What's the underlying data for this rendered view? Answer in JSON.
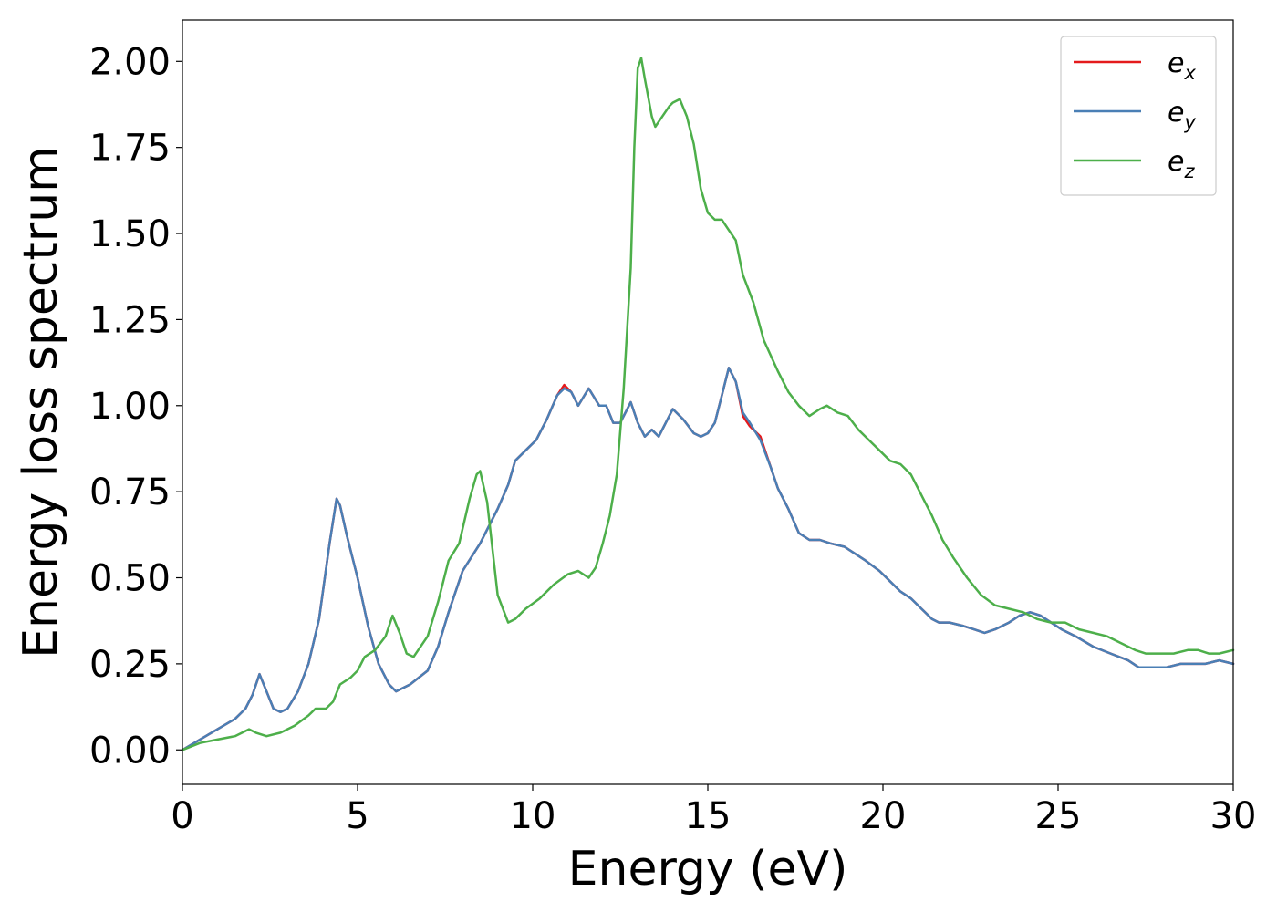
{
  "chart_data": {
    "type": "line",
    "title": "",
    "xlabel": "Energy (eV)",
    "ylabel": "Energy loss spectrum",
    "xlim": [
      0,
      30
    ],
    "ylim": [
      -0.1,
      2.12
    ],
    "xticks": [
      0,
      5,
      10,
      15,
      20,
      25,
      30
    ],
    "xtick_labels": [
      "0",
      "5",
      "10",
      "15",
      "20",
      "25",
      "30"
    ],
    "yticks": [
      0.0,
      0.25,
      0.5,
      0.75,
      1.0,
      1.25,
      1.5,
      1.75,
      2.0
    ],
    "ytick_labels": [
      "0.00",
      "0.25",
      "0.50",
      "0.75",
      "1.00",
      "1.25",
      "1.50",
      "1.75",
      "2.00"
    ],
    "grid": false,
    "legend_position": "top-right",
    "series": [
      {
        "name": "e_x",
        "legend_base": "e",
        "legend_sub": "x",
        "color": "#e41a1c",
        "x": [
          0,
          0.5,
          1.0,
          1.5,
          1.8,
          2.0,
          2.2,
          2.4,
          2.6,
          2.8,
          3.0,
          3.3,
          3.6,
          3.9,
          4.2,
          4.4,
          4.5,
          4.7,
          5.0,
          5.3,
          5.6,
          5.9,
          6.1,
          6.5,
          7.0,
          7.3,
          7.6,
          8.0,
          8.5,
          9.0,
          9.3,
          9.5,
          9.8,
          10.1,
          10.4,
          10.7,
          10.9,
          11.1,
          11.3,
          11.6,
          11.9,
          12.1,
          12.3,
          12.5,
          12.8,
          13.0,
          13.2,
          13.4,
          13.6,
          13.8,
          14.0,
          14.3,
          14.6,
          14.8,
          15.0,
          15.2,
          15.4,
          15.6,
          15.8,
          16.0,
          16.2,
          16.5,
          16.8,
          17.0,
          17.3,
          17.6,
          17.9,
          18.2,
          18.5,
          18.9,
          19.2,
          19.5,
          19.9,
          20.2,
          20.5,
          20.8,
          21.1,
          21.4,
          21.6,
          21.9,
          22.3,
          22.6,
          22.9,
          23.2,
          23.6,
          23.9,
          24.2,
          24.5,
          24.8,
          25.1,
          25.5,
          26.0,
          26.5,
          27.0,
          27.3,
          27.7,
          28.1,
          28.5,
          28.9,
          29.2,
          29.6,
          30.0
        ],
        "values": [
          0.0,
          0.03,
          0.06,
          0.09,
          0.12,
          0.16,
          0.22,
          0.17,
          0.12,
          0.11,
          0.12,
          0.17,
          0.25,
          0.38,
          0.6,
          0.73,
          0.71,
          0.62,
          0.5,
          0.36,
          0.25,
          0.19,
          0.17,
          0.19,
          0.23,
          0.3,
          0.4,
          0.52,
          0.6,
          0.7,
          0.77,
          0.84,
          0.87,
          0.9,
          0.96,
          1.03,
          1.06,
          1.04,
          1.0,
          1.05,
          1.0,
          1.0,
          0.95,
          0.95,
          1.01,
          0.95,
          0.91,
          0.93,
          0.91,
          0.95,
          0.99,
          0.96,
          0.92,
          0.91,
          0.92,
          0.95,
          1.03,
          1.11,
          1.07,
          0.97,
          0.94,
          0.91,
          0.82,
          0.76,
          0.7,
          0.63,
          0.61,
          0.61,
          0.6,
          0.59,
          0.57,
          0.55,
          0.52,
          0.49,
          0.46,
          0.44,
          0.41,
          0.38,
          0.37,
          0.37,
          0.36,
          0.35,
          0.34,
          0.35,
          0.37,
          0.39,
          0.4,
          0.39,
          0.37,
          0.35,
          0.33,
          0.3,
          0.28,
          0.26,
          0.24,
          0.24,
          0.24,
          0.25,
          0.25,
          0.25,
          0.26,
          0.25
        ]
      },
      {
        "name": "e_y",
        "legend_base": "e",
        "legend_sub": "y",
        "color": "#4a7fb5",
        "x": [
          0,
          0.5,
          1.0,
          1.5,
          1.8,
          2.0,
          2.2,
          2.4,
          2.6,
          2.8,
          3.0,
          3.3,
          3.6,
          3.9,
          4.2,
          4.4,
          4.5,
          4.7,
          5.0,
          5.3,
          5.6,
          5.9,
          6.1,
          6.5,
          7.0,
          7.3,
          7.6,
          8.0,
          8.5,
          9.0,
          9.3,
          9.5,
          9.8,
          10.1,
          10.4,
          10.7,
          10.9,
          11.1,
          11.3,
          11.6,
          11.9,
          12.1,
          12.3,
          12.5,
          12.8,
          13.0,
          13.2,
          13.4,
          13.6,
          13.8,
          14.0,
          14.3,
          14.6,
          14.8,
          15.0,
          15.2,
          15.4,
          15.6,
          15.8,
          16.0,
          16.2,
          16.5,
          16.8,
          17.0,
          17.3,
          17.6,
          17.9,
          18.2,
          18.5,
          18.9,
          19.2,
          19.5,
          19.9,
          20.2,
          20.5,
          20.8,
          21.1,
          21.4,
          21.6,
          21.9,
          22.3,
          22.6,
          22.9,
          23.2,
          23.6,
          23.9,
          24.2,
          24.5,
          24.8,
          25.1,
          25.5,
          26.0,
          26.5,
          27.0,
          27.3,
          27.7,
          28.1,
          28.5,
          28.9,
          29.2,
          29.6,
          30.0
        ],
        "values": [
          0.0,
          0.03,
          0.06,
          0.09,
          0.12,
          0.16,
          0.22,
          0.17,
          0.12,
          0.11,
          0.12,
          0.17,
          0.25,
          0.38,
          0.6,
          0.73,
          0.71,
          0.62,
          0.5,
          0.36,
          0.25,
          0.19,
          0.17,
          0.19,
          0.23,
          0.3,
          0.4,
          0.52,
          0.6,
          0.7,
          0.77,
          0.84,
          0.87,
          0.9,
          0.96,
          1.03,
          1.05,
          1.04,
          1.0,
          1.05,
          1.0,
          1.0,
          0.95,
          0.95,
          1.01,
          0.95,
          0.91,
          0.93,
          0.91,
          0.95,
          0.99,
          0.96,
          0.92,
          0.91,
          0.92,
          0.95,
          1.03,
          1.11,
          1.07,
          0.98,
          0.95,
          0.9,
          0.82,
          0.76,
          0.7,
          0.63,
          0.61,
          0.61,
          0.6,
          0.59,
          0.57,
          0.55,
          0.52,
          0.49,
          0.46,
          0.44,
          0.41,
          0.38,
          0.37,
          0.37,
          0.36,
          0.35,
          0.34,
          0.35,
          0.37,
          0.39,
          0.4,
          0.39,
          0.37,
          0.35,
          0.33,
          0.3,
          0.28,
          0.26,
          0.24,
          0.24,
          0.24,
          0.25,
          0.25,
          0.25,
          0.26,
          0.25
        ]
      },
      {
        "name": "e_z",
        "legend_base": "e",
        "legend_sub": "z",
        "color": "#4daf4a",
        "x": [
          0,
          0.5,
          1.0,
          1.5,
          1.9,
          2.1,
          2.4,
          2.8,
          3.2,
          3.6,
          3.8,
          4.1,
          4.3,
          4.5,
          4.8,
          5.0,
          5.2,
          5.5,
          5.8,
          6.0,
          6.2,
          6.4,
          6.6,
          7.0,
          7.3,
          7.6,
          7.9,
          8.2,
          8.4,
          8.5,
          8.7,
          9.0,
          9.3,
          9.5,
          9.8,
          10.2,
          10.6,
          11.0,
          11.3,
          11.6,
          11.8,
          12.0,
          12.2,
          12.4,
          12.6,
          12.8,
          12.9,
          13.0,
          13.1,
          13.2,
          13.4,
          13.5,
          13.7,
          13.9,
          14.0,
          14.2,
          14.4,
          14.6,
          14.8,
          15.0,
          15.2,
          15.4,
          15.6,
          15.8,
          16.0,
          16.3,
          16.6,
          17.0,
          17.3,
          17.6,
          17.9,
          18.2,
          18.4,
          18.7,
          19.0,
          19.3,
          19.6,
          19.9,
          20.2,
          20.5,
          20.8,
          21.1,
          21.4,
          21.7,
          22.0,
          22.4,
          22.8,
          23.2,
          23.6,
          24.0,
          24.4,
          24.8,
          25.2,
          25.6,
          26.0,
          26.4,
          26.8,
          27.2,
          27.5,
          27.9,
          28.3,
          28.7,
          29.0,
          29.3,
          29.6,
          30.0
        ],
        "values": [
          0.0,
          0.02,
          0.03,
          0.04,
          0.06,
          0.05,
          0.04,
          0.05,
          0.07,
          0.1,
          0.12,
          0.12,
          0.14,
          0.19,
          0.21,
          0.23,
          0.27,
          0.29,
          0.33,
          0.39,
          0.34,
          0.28,
          0.27,
          0.33,
          0.43,
          0.55,
          0.6,
          0.73,
          0.8,
          0.81,
          0.72,
          0.45,
          0.37,
          0.38,
          0.41,
          0.44,
          0.48,
          0.51,
          0.52,
          0.5,
          0.53,
          0.6,
          0.68,
          0.8,
          1.05,
          1.4,
          1.75,
          1.98,
          2.01,
          1.95,
          1.84,
          1.81,
          1.84,
          1.87,
          1.88,
          1.89,
          1.84,
          1.76,
          1.63,
          1.56,
          1.54,
          1.54,
          1.51,
          1.48,
          1.38,
          1.3,
          1.19,
          1.1,
          1.04,
          1.0,
          0.97,
          0.99,
          1.0,
          0.98,
          0.97,
          0.93,
          0.9,
          0.87,
          0.84,
          0.83,
          0.8,
          0.74,
          0.68,
          0.61,
          0.56,
          0.5,
          0.45,
          0.42,
          0.41,
          0.4,
          0.38,
          0.37,
          0.37,
          0.35,
          0.34,
          0.33,
          0.31,
          0.29,
          0.28,
          0.28,
          0.28,
          0.29,
          0.29,
          0.28,
          0.28,
          0.29
        ]
      }
    ]
  }
}
